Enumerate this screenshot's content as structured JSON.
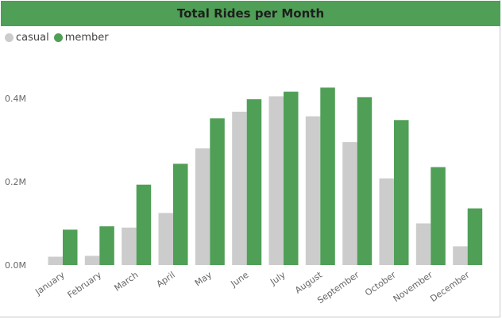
{
  "chart_data": {
    "type": "bar",
    "title": "Total Rides per Month",
    "categories": [
      "January",
      "February",
      "March",
      "April",
      "May",
      "June",
      "July",
      "August",
      "September",
      "October",
      "November",
      "December"
    ],
    "series": [
      {
        "name": "casual",
        "color": "#cccccc",
        "values": [
          20000,
          22000,
          90000,
          125000,
          280000,
          368000,
          405000,
          357000,
          295000,
          208000,
          100000,
          45000
        ]
      },
      {
        "name": "member",
        "color": "#4f9f56",
        "values": [
          85000,
          93000,
          193000,
          243000,
          352000,
          398000,
          416000,
          426000,
          403000,
          348000,
          235000,
          136000
        ]
      }
    ],
    "y_ticks": [
      {
        "value": 0,
        "label": "0.0M"
      },
      {
        "value": 200000,
        "label": "0.2M"
      },
      {
        "value": 400000,
        "label": "0.4M"
      }
    ],
    "ylim": [
      0,
      400000
    ],
    "legend_position": "top-left",
    "grid": false
  }
}
